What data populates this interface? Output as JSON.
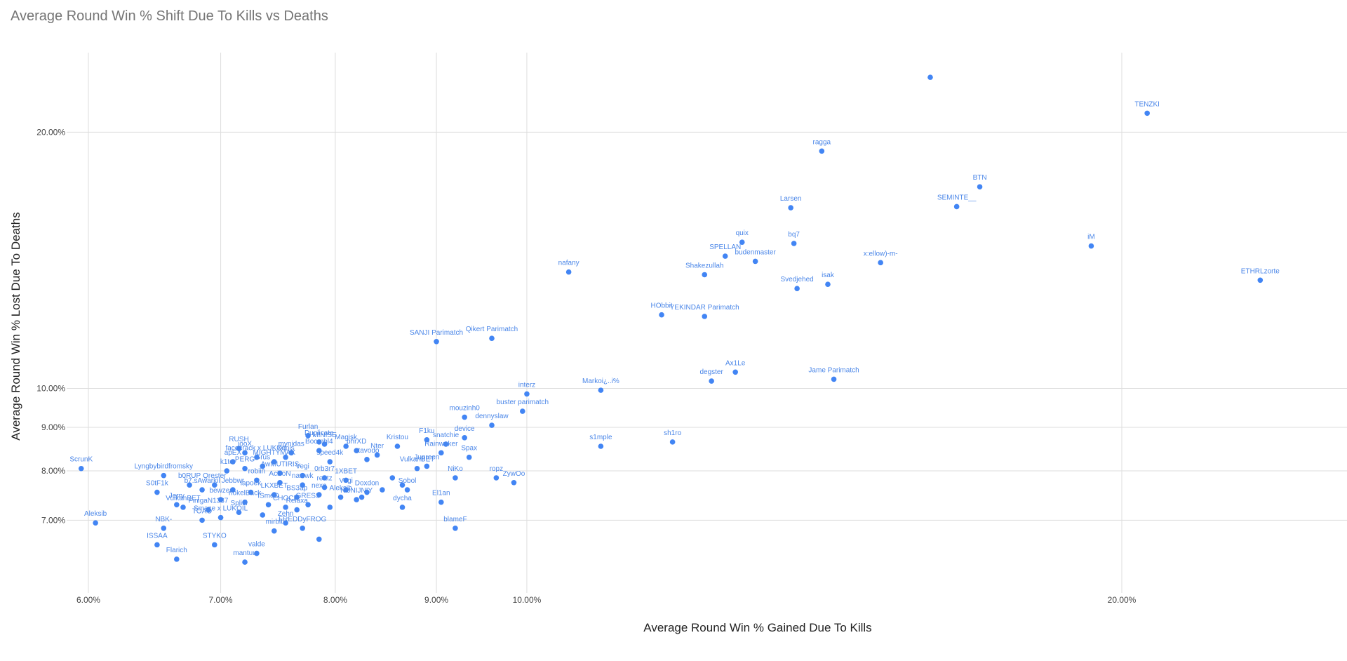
{
  "chart_data": {
    "type": "scatter",
    "title": "Average Round Win % Shift Due To Kills vs Deaths",
    "xlabel": "Average Round Win % Gained Due To Kills",
    "ylabel": "Average Round Win % Lost Due To Deaths",
    "x_scale": "log",
    "y_scale": "log",
    "xlim": [
      5.85,
      26
    ],
    "ylim": [
      5.75,
      24.8
    ],
    "xticks": [
      {
        "value": 6,
        "label": "6.00%"
      },
      {
        "value": 7,
        "label": "7.00%"
      },
      {
        "value": 8,
        "label": "8.00%"
      },
      {
        "value": 9,
        "label": "9.00%"
      },
      {
        "value": 10,
        "label": "10.00%"
      },
      {
        "value": 20,
        "label": "20.00%"
      }
    ],
    "yticks": [
      {
        "value": 7,
        "label": "7.00%"
      },
      {
        "value": 8,
        "label": "8.00%"
      },
      {
        "value": 9,
        "label": "9.00%"
      },
      {
        "value": 10,
        "label": "10.00%"
      },
      {
        "value": 20,
        "label": "20.00%"
      }
    ],
    "grid": true,
    "color": "#4285f4",
    "points": [
      {
        "x": 16.0,
        "y": 23.2,
        "label": ""
      },
      {
        "x": 20.6,
        "y": 21.05,
        "label": "TENZKI"
      },
      {
        "x": 14.1,
        "y": 19.0,
        "label": "ragga"
      },
      {
        "x": 16.95,
        "y": 17.25,
        "label": "BTN"
      },
      {
        "x": 13.6,
        "y": 16.3,
        "label": "Larsen"
      },
      {
        "x": 16.5,
        "y": 16.35,
        "label": "SEMINTE__"
      },
      {
        "x": 12.85,
        "y": 14.85,
        "label": "quix"
      },
      {
        "x": 13.65,
        "y": 14.8,
        "label": "bq7"
      },
      {
        "x": 19.3,
        "y": 14.7,
        "label": "iM"
      },
      {
        "x": 12.6,
        "y": 14.3,
        "label": "SPELLAN"
      },
      {
        "x": 13.05,
        "y": 14.1,
        "label": "budenmaster"
      },
      {
        "x": 15.1,
        "y": 14.05,
        "label": "x:ellow)-m-"
      },
      {
        "x": 10.5,
        "y": 13.7,
        "label": "nafany"
      },
      {
        "x": 12.3,
        "y": 13.6,
        "label": "Shakezullah"
      },
      {
        "x": 14.2,
        "y": 13.25,
        "label": "isak"
      },
      {
        "x": 13.7,
        "y": 13.1,
        "label": "Svedjehed"
      },
      {
        "x": 23.5,
        "y": 13.4,
        "label": "ETHRLzorte"
      },
      {
        "x": 11.7,
        "y": 12.2,
        "label": "HObbit"
      },
      {
        "x": 12.3,
        "y": 12.15,
        "label": "YEKINDAR Parimatch"
      },
      {
        "x": 9.0,
        "y": 11.35,
        "label": "SANJI Parimatch"
      },
      {
        "x": 9.6,
        "y": 11.45,
        "label": "Qikert Parimatch"
      },
      {
        "x": 12.75,
        "y": 10.45,
        "label": "Ax1Le"
      },
      {
        "x": 12.4,
        "y": 10.2,
        "label": "degster"
      },
      {
        "x": 14.3,
        "y": 10.25,
        "label": "Jame Parimatch"
      },
      {
        "x": 10.9,
        "y": 9.95,
        "label": "Markoi¿..i%"
      },
      {
        "x": 10.0,
        "y": 9.85,
        "label": "interz"
      },
      {
        "x": 9.95,
        "y": 9.4,
        "label": "buster parimatch"
      },
      {
        "x": 9.3,
        "y": 9.25,
        "label": "mouzinh0"
      },
      {
        "x": 9.6,
        "y": 9.05,
        "label": "dennyslaw"
      },
      {
        "x": 9.3,
        "y": 8.75,
        "label": "device"
      },
      {
        "x": 8.9,
        "y": 8.7,
        "label": "F1ku"
      },
      {
        "x": 9.1,
        "y": 8.6,
        "label": "snatchie"
      },
      {
        "x": 9.05,
        "y": 8.4,
        "label": "Rainwaker"
      },
      {
        "x": 9.35,
        "y": 8.3,
        "label": "Spax"
      },
      {
        "x": 8.6,
        "y": 8.55,
        "label": "Kristou"
      },
      {
        "x": 10.9,
        "y": 8.55,
        "label": "s1mple"
      },
      {
        "x": 11.85,
        "y": 8.65,
        "label": "sh1ro"
      },
      {
        "x": 9.65,
        "y": 7.85,
        "label": "ropz"
      },
      {
        "x": 9.85,
        "y": 7.75,
        "label": "ZywOo"
      },
      {
        "x": 9.2,
        "y": 7.85,
        "label": "NiKo"
      },
      {
        "x": 9.05,
        "y": 7.35,
        "label": "El1an"
      },
      {
        "x": 9.2,
        "y": 6.85,
        "label": "blameF"
      },
      {
        "x": 8.65,
        "y": 7.25,
        "label": "dycha"
      },
      {
        "x": 8.7,
        "y": 7.6,
        "label": "Sobol"
      },
      {
        "x": 8.8,
        "y": 8.05,
        "label": "VulkanBET"
      },
      {
        "x": 8.9,
        "y": 8.1,
        "label": "Jupreen"
      },
      {
        "x": 8.65,
        "y": 7.7,
        "label": ""
      },
      {
        "x": 8.55,
        "y": 7.85,
        "label": ""
      },
      {
        "x": 8.45,
        "y": 7.6,
        "label": ""
      },
      {
        "x": 8.25,
        "y": 7.45,
        "label": ""
      },
      {
        "x": 8.3,
        "y": 8.25,
        "label": "stavodo"
      },
      {
        "x": 8.4,
        "y": 8.35,
        "label": "Nter"
      },
      {
        "x": 8.2,
        "y": 8.45,
        "label": "phrXD"
      },
      {
        "x": 8.1,
        "y": 8.55,
        "label": "Magisk"
      },
      {
        "x": 7.95,
        "y": 8.2,
        "label": "speed4k"
      },
      {
        "x": 7.85,
        "y": 8.45,
        "label": "Boombl4"
      },
      {
        "x": 7.9,
        "y": 8.6,
        "label": "MINISE"
      },
      {
        "x": 7.85,
        "y": 8.65,
        "label": "Duplicate"
      },
      {
        "x": 7.75,
        "y": 8.8,
        "label": "Furlan"
      },
      {
        "x": 7.6,
        "y": 8.4,
        "label": "mynidas"
      },
      {
        "x": 7.55,
        "y": 8.3,
        "label": "Xonis"
      },
      {
        "x": 7.45,
        "y": 8.2,
        "label": "MIGHTYMAX"
      },
      {
        "x": 7.3,
        "y": 8.3,
        "label": "facecrack x LUKOIL"
      },
      {
        "x": 7.15,
        "y": 8.5,
        "label": "RUSH"
      },
      {
        "x": 7.2,
        "y": 8.4,
        "label": "jooX"
      },
      {
        "x": 7.1,
        "y": 8.2,
        "label": "apEX"
      },
      {
        "x": 7.2,
        "y": 8.05,
        "label": "PERG"
      },
      {
        "x": 7.05,
        "y": 8.0,
        "label": "k1to"
      },
      {
        "x": 7.35,
        "y": 8.1,
        "label": "Grus"
      },
      {
        "x": 7.5,
        "y": 7.95,
        "label": "AwMUTIRIS"
      },
      {
        "x": 7.7,
        "y": 7.9,
        "label": "Vegi"
      },
      {
        "x": 7.9,
        "y": 7.85,
        "label": "0rb3r7"
      },
      {
        "x": 8.1,
        "y": 7.8,
        "label": "1XBET"
      },
      {
        "x": 7.3,
        "y": 7.8,
        "label": "robiin"
      },
      {
        "x": 7.5,
        "y": 7.75,
        "label": "AcilioN"
      },
      {
        "x": 7.7,
        "y": 7.7,
        "label": "nawwk"
      },
      {
        "x": 7.9,
        "y": 7.65,
        "label": "reatz"
      },
      {
        "x": 8.1,
        "y": 7.6,
        "label": "Vegi"
      },
      {
        "x": 8.3,
        "y": 7.55,
        "label": "Doxdon"
      },
      {
        "x": 6.95,
        "y": 7.7,
        "label": "Qrester"
      },
      {
        "x": 7.1,
        "y": 7.6,
        "label": "Jebbwr"
      },
      {
        "x": 7.25,
        "y": 7.55,
        "label": "lapoek"
      },
      {
        "x": 7.45,
        "y": 7.5,
        "label": "LKXBET"
      },
      {
        "x": 7.65,
        "y": 7.45,
        "label": "BS3ap"
      },
      {
        "x": 7.85,
        "y": 7.5,
        "label": "nexa"
      },
      {
        "x": 8.05,
        "y": 7.45,
        "label": "Aleksib"
      },
      {
        "x": 8.2,
        "y": 7.4,
        "label": "NiJNIJNIY"
      },
      {
        "x": 7.0,
        "y": 7.4,
        "label": "bewzer"
      },
      {
        "x": 7.2,
        "y": 7.35,
        "label": "nokelBack"
      },
      {
        "x": 7.4,
        "y": 7.3,
        "label": "ISmeD"
      },
      {
        "x": 7.55,
        "y": 7.25,
        "label": "CHOCK"
      },
      {
        "x": 7.75,
        "y": 7.3,
        "label": "GRESS"
      },
      {
        "x": 7.95,
        "y": 7.25,
        "label": ""
      },
      {
        "x": 7.15,
        "y": 7.15,
        "label": "Splici"
      },
      {
        "x": 7.35,
        "y": 7.1,
        "label": ""
      },
      {
        "x": 7.65,
        "y": 7.2,
        "label": "Relaxa"
      },
      {
        "x": 7.0,
        "y": 7.05,
        "label": "Smaze x LUKOIL"
      },
      {
        "x": 7.45,
        "y": 6.8,
        "label": "mirbit"
      },
      {
        "x": 7.7,
        "y": 6.85,
        "label": "FREDDyFROG"
      },
      {
        "x": 7.55,
        "y": 6.95,
        "label": "Zehn"
      },
      {
        "x": 7.85,
        "y": 6.65,
        "label": ""
      },
      {
        "x": 5.95,
        "y": 8.05,
        "label": "ScrunK"
      },
      {
        "x": 6.55,
        "y": 7.9,
        "label": "Lyngbybirdfromsky"
      },
      {
        "x": 6.5,
        "y": 7.55,
        "label": "S0tF1k"
      },
      {
        "x": 6.75,
        "y": 7.7,
        "label": "b0RUP"
      },
      {
        "x": 6.85,
        "y": 7.6,
        "label": "b7.sAwarkil"
      },
      {
        "x": 6.65,
        "y": 7.3,
        "label": "Jerry"
      },
      {
        "x": 6.7,
        "y": 7.25,
        "label": "VulkanBET"
      },
      {
        "x": 6.9,
        "y": 7.2,
        "label": "FinigaN1337"
      },
      {
        "x": 6.85,
        "y": 7.0,
        "label": "TOAO"
      },
      {
        "x": 6.05,
        "y": 6.95,
        "label": "Aleksib"
      },
      {
        "x": 6.55,
        "y": 6.85,
        "label": "NBK-"
      },
      {
        "x": 6.5,
        "y": 6.55,
        "label": "ISSAA"
      },
      {
        "x": 6.95,
        "y": 6.55,
        "label": "STYKO"
      },
      {
        "x": 6.65,
        "y": 6.3,
        "label": "Flarich"
      },
      {
        "x": 7.3,
        "y": 6.4,
        "label": "valde"
      },
      {
        "x": 7.2,
        "y": 6.25,
        "label": "mantuu"
      }
    ]
  }
}
